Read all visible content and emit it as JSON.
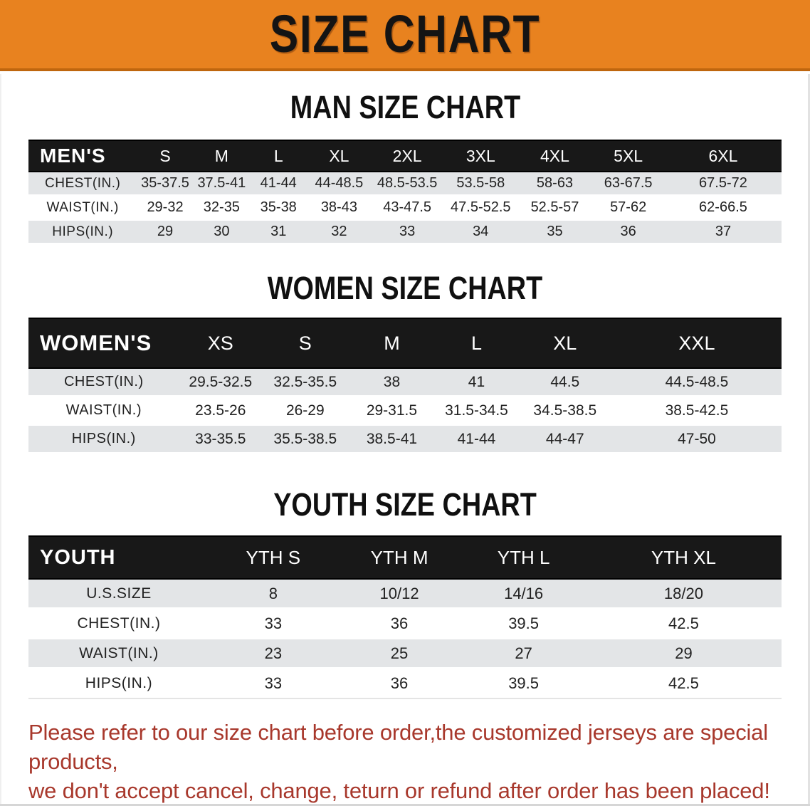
{
  "banner": {
    "title": "SIZE CHART"
  },
  "colors": {
    "banner_bg": "#E8821F",
    "banner_edge": "#BF660E",
    "header_bg": "#181818",
    "header_text": "#FFFFFF",
    "row_gray": "#E3E5E7",
    "row_white": "#FFFFFF",
    "body_text": "#222222",
    "disclaimer_red": "#A8382C"
  },
  "sections": [
    {
      "heading": "MAN SIZE CHART",
      "table": {
        "header": [
          "MEN'S",
          "S",
          "M",
          "L",
          "XL",
          "2XL",
          "3XL",
          "4XL",
          "5XL",
          "6XL"
        ],
        "rows": [
          {
            "label": "CHEST(IN.)",
            "values": [
              "35-37.5",
              "37.5-41",
              "41-44",
              "44-48.5",
              "48.5-53.5",
              "53.5-58",
              "58-63",
              "63-67.5",
              "67.5-72"
            ]
          },
          {
            "label": "WAIST(IN.)",
            "values": [
              "29-32",
              "32-35",
              "35-38",
              "38-43",
              "43-47.5",
              "47.5-52.5",
              "52.5-57",
              "57-62",
              "62-66.5"
            ]
          },
          {
            "label": "HIPS(IN.)",
            "values": [
              "29",
              "30",
              "31",
              "32",
              "33",
              "34",
              "35",
              "36",
              "37"
            ]
          }
        ]
      }
    },
    {
      "heading": "WOMEN SIZE CHART",
      "table": {
        "header": [
          "WOMEN'S",
          "XS",
          "S",
          "M",
          "L",
          "XL",
          "XXL"
        ],
        "rows": [
          {
            "label": "CHEST(IN.)",
            "values": [
              "29.5-32.5",
              "32.5-35.5",
              "38",
              "41",
              "44.5",
              "44.5-48.5"
            ]
          },
          {
            "label": "WAIST(IN.)",
            "values": [
              "23.5-26",
              "26-29",
              "29-31.5",
              "31.5-34.5",
              "34.5-38.5",
              "38.5-42.5"
            ]
          },
          {
            "label": "HIPS(IN.)",
            "values": [
              "33-35.5",
              "35.5-38.5",
              "38.5-41",
              "41-44",
              "44-47",
              "47-50"
            ]
          }
        ]
      }
    },
    {
      "heading": "YOUTH SIZE CHART",
      "table": {
        "header": [
          "YOUTH",
          "YTH S",
          "YTH M",
          "YTH L",
          "YTH XL"
        ],
        "rows": [
          {
            "label": "U.S.SIZE",
            "values": [
              "8",
              "10/12",
              "14/16",
              "18/20"
            ]
          },
          {
            "label": "CHEST(IN.)",
            "values": [
              "33",
              "36",
              "39.5",
              "42.5"
            ]
          },
          {
            "label": "WAIST(IN.)",
            "values": [
              "23",
              "25",
              "27",
              "29"
            ]
          },
          {
            "label": "HIPS(IN.)",
            "values": [
              "33",
              "36",
              "39.5",
              "42.5"
            ]
          }
        ]
      }
    }
  ],
  "disclaimer": {
    "lines": [
      "Please refer to our size chart before order,the customized jerseys are special products,",
      "we don't accept cancel, change, teturn or refund after order has been placed!"
    ]
  }
}
